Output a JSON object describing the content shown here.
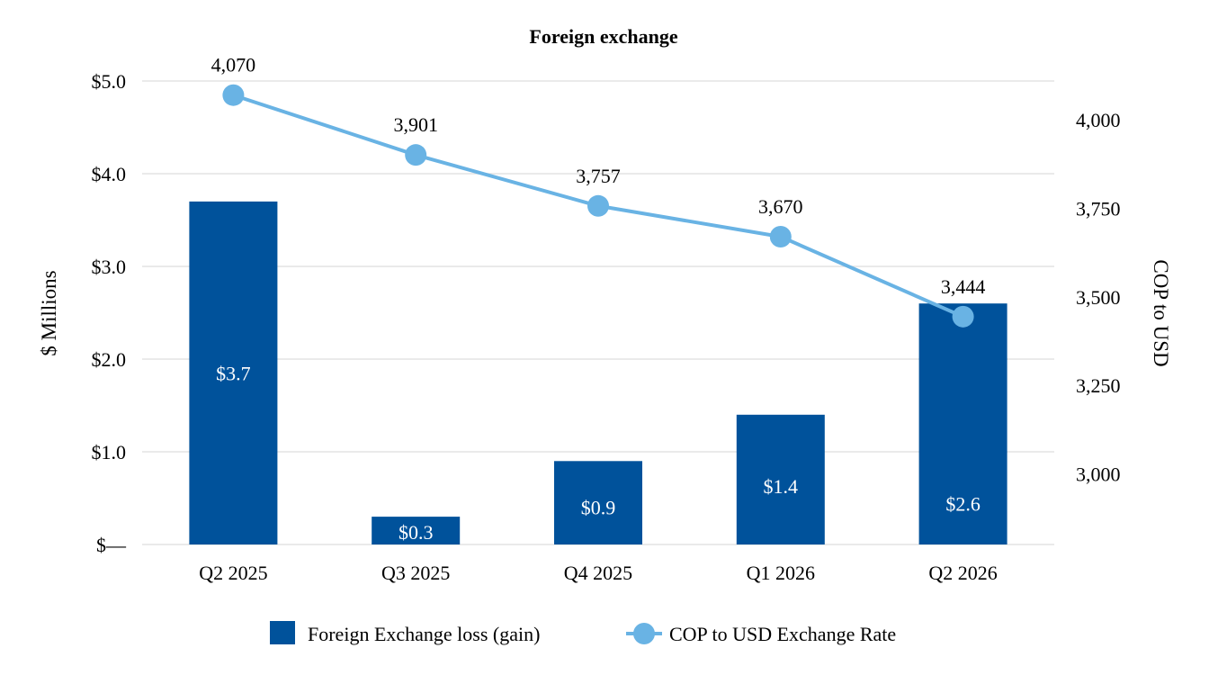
{
  "chart_data": {
    "type": "bar",
    "title": "Foreign exchange",
    "categories": [
      "Q2 2025",
      "Q3 2025",
      "Q4 2025",
      "Q1 2026",
      "Q2 2026"
    ],
    "ylabel": "$ Millions",
    "ylabel_right": "COP to USD",
    "ylim": [
      0,
      5
    ],
    "ylim_right": [
      2800,
      4110
    ],
    "y_ticks": [
      {
        "value": 0,
        "label": "$—"
      },
      {
        "value": 1,
        "label": "$1.0"
      },
      {
        "value": 2,
        "label": "$2.0"
      },
      {
        "value": 3,
        "label": "$3.0"
      },
      {
        "value": 4,
        "label": "$4.0"
      },
      {
        "value": 5,
        "label": "$5.0"
      }
    ],
    "y_ticks_right": [
      {
        "value": 3000,
        "label": "3,000"
      },
      {
        "value": 3250,
        "label": "3,250"
      },
      {
        "value": 3500,
        "label": "3,500"
      },
      {
        "value": 3750,
        "label": "3,750"
      },
      {
        "value": 4000,
        "label": "4,000"
      }
    ],
    "grid": true,
    "legend_position": "bottom",
    "series": [
      {
        "name": "Foreign Exchange loss (gain)",
        "type": "bar",
        "axis": "left",
        "color": "#00529B",
        "values": [
          3.7,
          0.3,
          0.9,
          1.4,
          2.6
        ],
        "labels": [
          "$3.7",
          "$0.3",
          "$0.9",
          "$1.4",
          "$2.6"
        ]
      },
      {
        "name": "COP to USD Exchange Rate",
        "type": "line",
        "axis": "right",
        "color": "#69B3E4",
        "values": [
          4070,
          3901,
          3757,
          3670,
          3444
        ],
        "labels": [
          "4,070",
          "3,901",
          "3,757",
          "3,670",
          "3,444"
        ]
      }
    ]
  }
}
